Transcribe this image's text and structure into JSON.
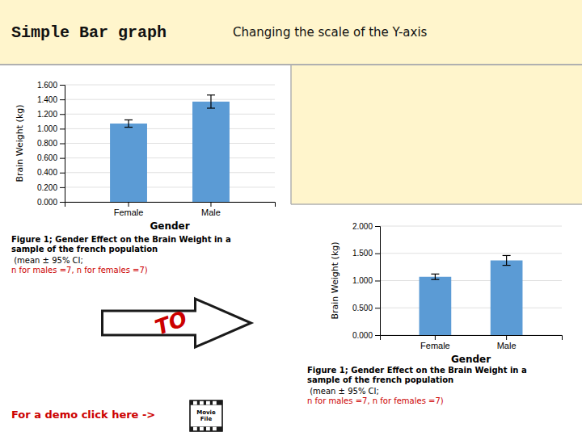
{
  "chart_data": [
    {
      "type": "bar",
      "title": "Simple Bar graph",
      "subtitle": "Changing the scale of the Y-axis",
      "categories": [
        "Female",
        "Male"
      ],
      "values": [
        1.07,
        1.37
      ],
      "errors": [
        0.05,
        0.09
      ],
      "color": "#5B9BD5",
      "xlabel": "Gender",
      "ylabel": "Brain Weight (kg)",
      "ylim": [
        0.0,
        1.6
      ],
      "yticks": [
        {
          "value": 0.0,
          "label": "0.000"
        },
        {
          "value": 0.2,
          "label": "0.200"
        },
        {
          "value": 0.4,
          "label": "0.400"
        },
        {
          "value": 0.6,
          "label": "0.600"
        },
        {
          "value": 0.8,
          "label": "0.800"
        },
        {
          "value": 1.0,
          "label": "1.000"
        },
        {
          "value": 1.2,
          "label": "1.200"
        },
        {
          "value": 1.4,
          "label": "1.400"
        },
        {
          "value": 1.6,
          "label": "1.600"
        }
      ],
      "grid": true,
      "annotations": [
        "Figure 1; Gender Effect on the Brain Weight in a\nsample of the french population",
        " (mean ± 95% CI;",
        "n for males =7, n for females =7)",
        "TO",
        "For a demo click here ->",
        "Movie\nFile"
      ]
    },
    {
      "type": "bar",
      "categories": [
        "Female",
        "Male"
      ],
      "values": [
        1.07,
        1.37
      ],
      "errors": [
        0.05,
        0.09
      ],
      "color": "#5B9BD5",
      "xlabel": "Gender",
      "ylabel": "Brain Weight (kg)",
      "ylim": [
        0.0,
        2.0
      ],
      "yticks": [
        {
          "value": 0.0,
          "label": "0.000"
        },
        {
          "value": 0.5,
          "label": "0.500"
        },
        {
          "value": 1.0,
          "label": "1.000"
        },
        {
          "value": 1.5,
          "label": "1.500"
        },
        {
          "value": 2.0,
          "label": "2.000"
        }
      ],
      "grid": true,
      "annotations": [
        "Figure 1; Gender Effect on the Brain Weight in a\nsample of the french population",
        " (mean ± 95% CI;",
        "n for males =7, n for females =7)"
      ]
    }
  ]
}
